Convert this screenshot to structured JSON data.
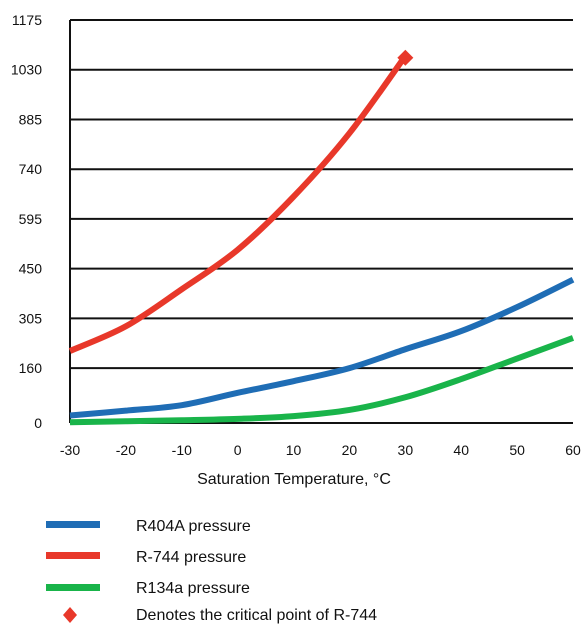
{
  "chart_data": {
    "type": "line",
    "title": "",
    "xlabel": "Saturation Temperature, °C",
    "ylabel": "",
    "xlim": [
      -30,
      60
    ],
    "ylim": [
      0,
      1175
    ],
    "x_ticks": [
      "-30",
      "-20",
      "-10",
      "0",
      "10",
      "20",
      "30",
      "40",
      "50",
      "60"
    ],
    "y_ticks": [
      "0",
      "160",
      "305",
      "450",
      "595",
      "740",
      "885",
      "1030",
      "1175"
    ],
    "grid": "horizontal",
    "legend_position": "bottom",
    "series": [
      {
        "name": "R404A pressure",
        "color": "#1f6db5",
        "x": [
          -30,
          -20,
          -10,
          0,
          10,
          20,
          30,
          40,
          50,
          60
        ],
        "y": [
          22,
          36,
          52,
          88,
          122,
          160,
          215,
          268,
          338,
          418
        ]
      },
      {
        "name": "R-744 pressure",
        "color": "#e8382a",
        "x": [
          -30,
          -20,
          -10,
          0,
          10,
          20,
          30
        ],
        "y": [
          210,
          282,
          390,
          505,
          660,
          845,
          1070
        ]
      },
      {
        "name": "R134a pressure",
        "color": "#19b44a",
        "x": [
          -30,
          -20,
          -10,
          0,
          10,
          20,
          30,
          40,
          50,
          60
        ],
        "y": [
          2,
          5,
          8,
          12,
          20,
          38,
          75,
          128,
          188,
          248
        ]
      }
    ],
    "critical_point": {
      "label": "Denotes the critical point of R-744",
      "x": 30,
      "y": 1065,
      "color": "#e8382a"
    }
  }
}
